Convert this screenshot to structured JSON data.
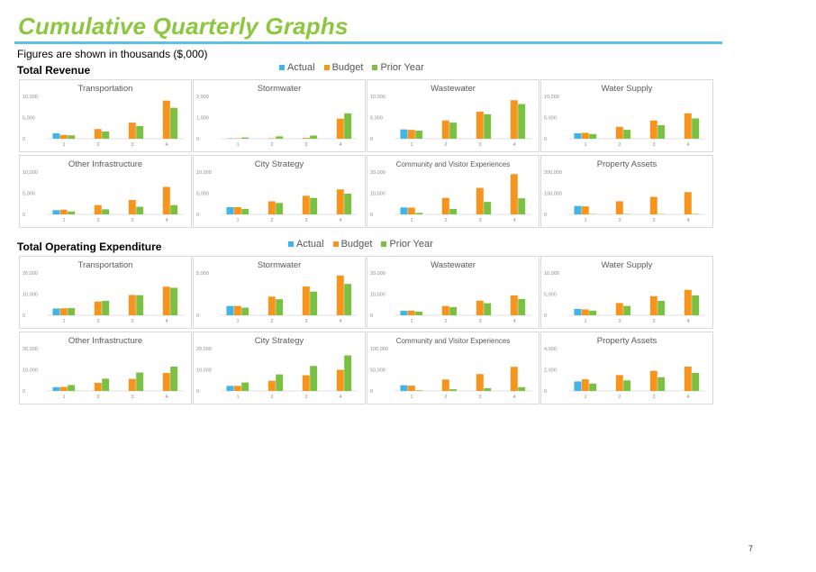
{
  "page": {
    "title": "Cumulative Quarterly Graphs",
    "subtitle": "Figures are shown in thousands ($,000)",
    "page_number": "7"
  },
  "sections": [
    {
      "heading": "Total Revenue"
    },
    {
      "heading": "Total Operating Expenditure"
    }
  ],
  "legend": [
    {
      "label": "Actual",
      "color": "#41b6e6"
    },
    {
      "label": "Budget",
      "color": "#f7941d"
    },
    {
      "label": "Prior Year",
      "color": "#7ac143"
    }
  ],
  "chart_data": [
    {
      "section": "Total Revenue",
      "type": "bar",
      "title": "Transportation",
      "categories": [
        "1",
        "2",
        "3",
        "4"
      ],
      "yticks": [
        "0",
        "5,000",
        "10,000"
      ],
      "ylim": [
        0,
        10000
      ],
      "series": [
        {
          "name": "Actual",
          "values": [
            1300,
            null,
            null,
            null
          ]
        },
        {
          "name": "Budget",
          "values": [
            900,
            2300,
            3800,
            9000
          ]
        },
        {
          "name": "Prior Year",
          "values": [
            800,
            1700,
            3000,
            7300
          ]
        }
      ]
    },
    {
      "section": "Total Revenue",
      "type": "bar",
      "title": "Stormwater",
      "categories": [
        "1",
        "2",
        "3",
        "4"
      ],
      "yticks": [
        "0",
        "1,000",
        "2,000"
      ],
      "ylim": [
        0,
        2000
      ],
      "series": [
        {
          "name": "Actual",
          "values": [
            0,
            null,
            null,
            null
          ]
        },
        {
          "name": "Budget",
          "values": [
            0,
            20,
            40,
            950
          ]
        },
        {
          "name": "Prior Year",
          "values": [
            60,
            110,
            150,
            1200
          ]
        }
      ]
    },
    {
      "section": "Total Revenue",
      "type": "bar",
      "title": "Wastewater",
      "categories": [
        "1",
        "2",
        "3",
        "4"
      ],
      "yticks": [
        "0",
        "5,000",
        "10,000"
      ],
      "ylim": [
        0,
        10000
      ],
      "series": [
        {
          "name": "Actual",
          "values": [
            2200,
            null,
            null,
            null
          ]
        },
        {
          "name": "Budget",
          "values": [
            2100,
            4300,
            6400,
            9100
          ]
        },
        {
          "name": "Prior Year",
          "values": [
            1900,
            3800,
            5800,
            8200
          ]
        }
      ]
    },
    {
      "section": "Total Revenue",
      "type": "bar",
      "title": "Water Supply",
      "categories": [
        "1",
        "2",
        "3",
        "4"
      ],
      "yticks": [
        "0",
        "5,000",
        "10,000"
      ],
      "ylim": [
        0,
        10000
      ],
      "series": [
        {
          "name": "Actual",
          "values": [
            1300,
            null,
            null,
            null
          ]
        },
        {
          "name": "Budget",
          "values": [
            1400,
            2800,
            4300,
            6000
          ]
        },
        {
          "name": "Prior Year",
          "values": [
            1100,
            2100,
            3200,
            4800
          ]
        }
      ]
    },
    {
      "section": "Total Revenue",
      "type": "bar",
      "title": "Other Infrastructure",
      "categories": [
        "1",
        "2",
        "3",
        "4"
      ],
      "yticks": [
        "0",
        "5,000",
        "10,000"
      ],
      "ylim": [
        0,
        10000
      ],
      "series": [
        {
          "name": "Actual",
          "values": [
            1000,
            null,
            null,
            null
          ]
        },
        {
          "name": "Budget",
          "values": [
            1100,
            2200,
            3400,
            6500
          ]
        },
        {
          "name": "Prior Year",
          "values": [
            700,
            1200,
            1800,
            2200
          ]
        }
      ]
    },
    {
      "section": "Total Revenue",
      "type": "bar",
      "title": "City Strategy",
      "categories": [
        "1",
        "2",
        "3",
        "4"
      ],
      "yticks": [
        "0",
        "5,000",
        "10,000"
      ],
      "ylim": [
        0,
        10000
      ],
      "series": [
        {
          "name": "Actual",
          "values": [
            1700,
            null,
            null,
            null
          ]
        },
        {
          "name": "Budget",
          "values": [
            1700,
            3100,
            4400,
            5900
          ]
        },
        {
          "name": "Prior Year",
          "values": [
            1300,
            2700,
            3900,
            4900
          ]
        }
      ]
    },
    {
      "section": "Total Revenue",
      "type": "bar",
      "title": "Community and Visitor Experiences",
      "categories": [
        "1",
        "2",
        "3",
        "4"
      ],
      "yticks": [
        "0",
        "10,000",
        "20,000"
      ],
      "ylim": [
        0,
        20000
      ],
      "series": [
        {
          "name": "Actual",
          "values": [
            3300,
            null,
            null,
            null
          ]
        },
        {
          "name": "Budget",
          "values": [
            3200,
            7800,
            12500,
            19000
          ]
        },
        {
          "name": "Prior Year",
          "values": [
            700,
            2600,
            5900,
            7600
          ]
        }
      ]
    },
    {
      "section": "Total Revenue",
      "type": "bar",
      "title": "Property Assets",
      "categories": [
        "1",
        "2",
        "3",
        "4"
      ],
      "yticks": [
        "0",
        "100,000",
        "200,000"
      ],
      "ylim": [
        0,
        200000
      ],
      "series": [
        {
          "name": "Actual",
          "values": [
            40000,
            null,
            null,
            null
          ]
        },
        {
          "name": "Budget",
          "values": [
            38000,
            62000,
            83000,
            105000
          ]
        },
        {
          "name": "Prior Year",
          "values": [
            1000,
            1000,
            1000,
            2000
          ]
        }
      ]
    },
    {
      "section": "Total Operating Expenditure",
      "type": "bar",
      "title": "Transportation",
      "categories": [
        "1",
        "2",
        "3",
        "4"
      ],
      "yticks": [
        "0",
        "10,000",
        "20,000"
      ],
      "ylim": [
        0,
        20000
      ],
      "series": [
        {
          "name": "Actual",
          "values": [
            3200,
            null,
            null,
            null
          ]
        },
        {
          "name": "Budget",
          "values": [
            3300,
            6500,
            9600,
            13500
          ]
        },
        {
          "name": "Prior Year",
          "values": [
            3400,
            6800,
            9500,
            13000
          ]
        }
      ]
    },
    {
      "section": "Total Operating Expenditure",
      "type": "bar",
      "title": "Stormwater",
      "categories": [
        "1",
        "2",
        "3",
        "4"
      ],
      "yticks": [
        "0",
        "5,000"
      ],
      "ylim": [
        0,
        5000
      ],
      "series": [
        {
          "name": "Actual",
          "values": [
            1100,
            null,
            null,
            null
          ]
        },
        {
          "name": "Budget",
          "values": [
            1100,
            2200,
            3400,
            4700
          ]
        },
        {
          "name": "Prior Year",
          "values": [
            900,
            1900,
            2800,
            3700
          ]
        }
      ]
    },
    {
      "section": "Total Operating Expenditure",
      "type": "bar",
      "title": "Wastewater",
      "categories": [
        "1",
        "2",
        "3",
        "4"
      ],
      "yticks": [
        "0",
        "10,000",
        "20,000"
      ],
      "ylim": [
        0,
        20000
      ],
      "series": [
        {
          "name": "Actual",
          "values": [
            2100,
            null,
            null,
            null
          ]
        },
        {
          "name": "Budget",
          "values": [
            2200,
            4400,
            6900,
            9400
          ]
        },
        {
          "name": "Prior Year",
          "values": [
            1700,
            3800,
            5700,
            7700
          ]
        }
      ]
    },
    {
      "section": "Total Operating Expenditure",
      "type": "bar",
      "title": "Water Supply",
      "categories": [
        "1",
        "2",
        "3",
        "4"
      ],
      "yticks": [
        "0",
        "5,000",
        "10,000"
      ],
      "ylim": [
        0,
        10000
      ],
      "series": [
        {
          "name": "Actual",
          "values": [
            1500,
            null,
            null,
            null
          ]
        },
        {
          "name": "Budget",
          "values": [
            1400,
            2900,
            4500,
            6000
          ]
        },
        {
          "name": "Prior Year",
          "values": [
            1100,
            2200,
            3400,
            4700
          ]
        }
      ]
    },
    {
      "section": "Total Operating Expenditure",
      "type": "bar",
      "title": "Other Infrastructure",
      "categories": [
        "1",
        "2",
        "3",
        "4"
      ],
      "yticks": [
        "0",
        "10,000",
        "20,000"
      ],
      "ylim": [
        0,
        20000
      ],
      "series": [
        {
          "name": "Actual",
          "values": [
            1800,
            null,
            null,
            null
          ]
        },
        {
          "name": "Budget",
          "values": [
            1900,
            3800,
            5700,
            8500
          ]
        },
        {
          "name": "Prior Year",
          "values": [
            2800,
            5800,
            8700,
            11500
          ]
        }
      ]
    },
    {
      "section": "Total Operating Expenditure",
      "type": "bar",
      "title": "City Strategy",
      "categories": [
        "1",
        "2",
        "3",
        "4"
      ],
      "yticks": [
        "0",
        "10,000",
        "20,000"
      ],
      "ylim": [
        0,
        20000
      ],
      "series": [
        {
          "name": "Actual",
          "values": [
            2400,
            null,
            null,
            null
          ]
        },
        {
          "name": "Budget",
          "values": [
            2400,
            4800,
            7400,
            10000
          ]
        },
        {
          "name": "Prior Year",
          "values": [
            4000,
            7800,
            11800,
            16800
          ]
        }
      ]
    },
    {
      "section": "Total Operating Expenditure",
      "type": "bar",
      "title": "Community and Visitor Experiences",
      "categories": [
        "1",
        "2",
        "3",
        "4"
      ],
      "yticks": [
        "0",
        "50,000",
        "100,000"
      ],
      "ylim": [
        0,
        100000
      ],
      "series": [
        {
          "name": "Actual",
          "values": [
            13500,
            null,
            null,
            null
          ]
        },
        {
          "name": "Budget",
          "values": [
            12500,
            27000,
            40000,
            57000
          ]
        },
        {
          "name": "Prior Year",
          "values": [
            1500,
            4000,
            6500,
            9000
          ]
        }
      ]
    },
    {
      "section": "Total Operating Expenditure",
      "type": "bar",
      "title": "Property Assets",
      "categories": [
        "1",
        "2",
        "3",
        "4"
      ],
      "yticks": [
        "0",
        "2,000",
        "4,000"
      ],
      "ylim": [
        0,
        4000
      ],
      "series": [
        {
          "name": "Actual",
          "values": [
            900,
            null,
            null,
            null
          ]
        },
        {
          "name": "Budget",
          "values": [
            1100,
            1500,
            1900,
            2300
          ]
        },
        {
          "name": "Prior Year",
          "values": [
            700,
            1000,
            1300,
            1700
          ]
        }
      ]
    }
  ]
}
